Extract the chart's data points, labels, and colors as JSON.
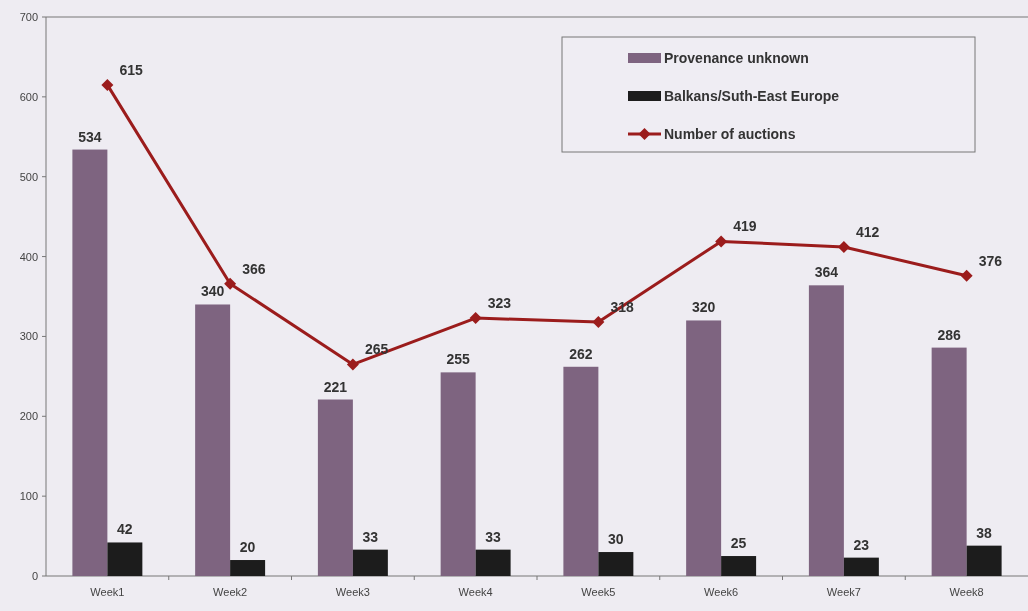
{
  "chart_data": {
    "type": "bar",
    "categories": [
      "Week1",
      "Week2",
      "Week3",
      "Week4",
      "Week5",
      "Week6",
      "Week7",
      "Week8"
    ],
    "series": [
      {
        "name": "Provenance unknown",
        "color": "#7e6480",
        "values": [
          534,
          340,
          221,
          255,
          262,
          320,
          364,
          286
        ]
      },
      {
        "name": "Balkans/Suth-East Europe",
        "color": "#1c1c1c",
        "values": [
          42,
          20,
          33,
          33,
          30,
          25,
          23,
          38
        ]
      },
      {
        "name": "Number of auctions",
        "type": "line",
        "color": "#9b1c1c",
        "values": [
          615,
          366,
          265,
          323,
          318,
          419,
          412,
          376
        ]
      }
    ],
    "ylim": [
      0,
      700
    ],
    "yticks": [
      0,
      100,
      200,
      300,
      400,
      500,
      600,
      700
    ],
    "data_labels": true,
    "legend": "top right",
    "marker": "diamond",
    "line_style": "solid"
  }
}
